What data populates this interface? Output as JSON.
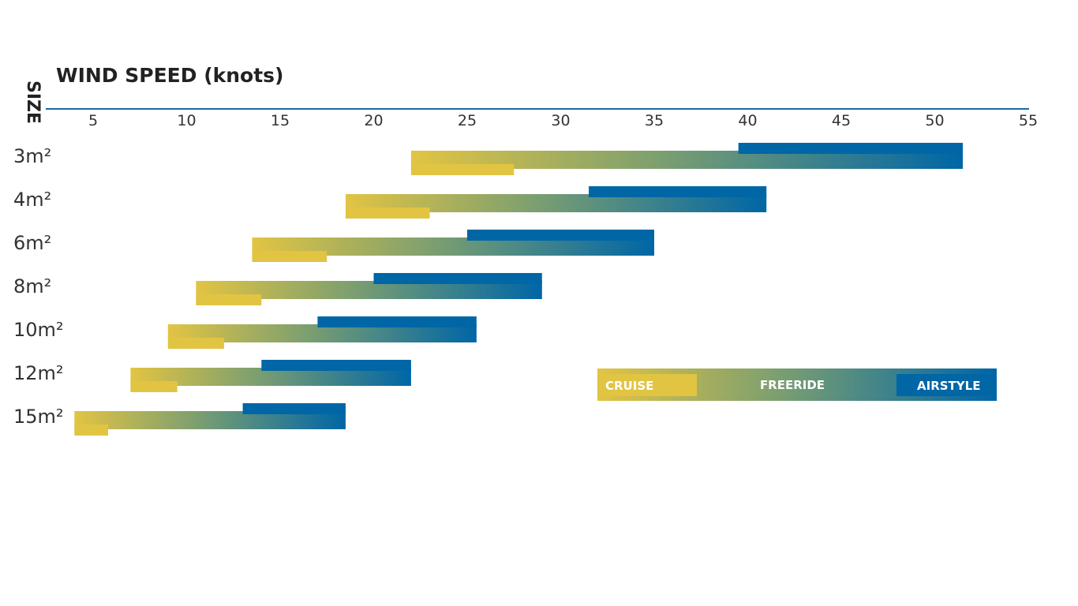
{
  "colors": {
    "cruise": "#e2c443",
    "airstyle": "#0066a6",
    "axis": "#1a6aa0"
  },
  "chart_data": {
    "type": "bar",
    "title": "WIND SPEED (knots)",
    "ylabel": "SIZE",
    "x_ticks": [
      5,
      10,
      15,
      20,
      25,
      30,
      35,
      40,
      45,
      50,
      55
    ],
    "xlim": [
      2,
      55
    ],
    "categories": [
      "3m²",
      "4m²",
      "6m²",
      "8m²",
      "10m²",
      "12m²",
      "15m²"
    ],
    "series": [
      {
        "name": "CRUISE",
        "ranges": [
          [
            22,
            27.5
          ],
          [
            18.5,
            23
          ],
          [
            13.5,
            17.5
          ],
          [
            10.5,
            14
          ],
          [
            9,
            12
          ],
          [
            7,
            9.5
          ],
          [
            4,
            5.8
          ]
        ]
      },
      {
        "name": "FREERIDE",
        "ranges": [
          [
            22,
            51.5
          ],
          [
            18.5,
            41
          ],
          [
            13.5,
            35
          ],
          [
            10.5,
            29
          ],
          [
            9,
            25.5
          ],
          [
            7,
            22
          ],
          [
            4,
            18.5
          ]
        ]
      },
      {
        "name": "AIRSTYLE",
        "ranges": [
          [
            39.5,
            51.5
          ],
          [
            31.5,
            41
          ],
          [
            25,
            35
          ],
          [
            20,
            29
          ],
          [
            17,
            25.5
          ],
          [
            14,
            22
          ],
          [
            13,
            18.5
          ]
        ]
      }
    ],
    "legend": [
      "CRUISE",
      "FREERIDE",
      "AIRSTYLE"
    ],
    "legend_position": "right"
  }
}
